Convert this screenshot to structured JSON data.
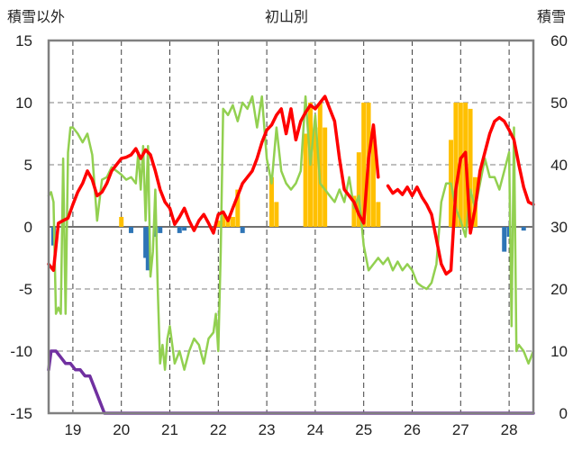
{
  "chart_data": {
    "type": "line",
    "title": "初山別",
    "left_axis_label": "積雪以外",
    "right_axis_label": "積雪",
    "left_ylim": [
      -15,
      15
    ],
    "left_ticks": [
      -15,
      -10,
      -5,
      0,
      5,
      10,
      15
    ],
    "right_ylim": [
      0,
      60
    ],
    "right_ticks": [
      0,
      10,
      20,
      30,
      40,
      50,
      60
    ],
    "xlim": [
      18.5,
      28.5
    ],
    "x_ticks": [
      19,
      20,
      21,
      22,
      23,
      24,
      25,
      26,
      27,
      28
    ],
    "grid": true,
    "legend": "none",
    "colors": {
      "temperature": "#ff0000",
      "temp_diff": "#92d050",
      "snow_depth": "#7030a0",
      "precip_positive": "#ffc000",
      "precip_negative": "#2e75b6"
    },
    "series": [
      {
        "key": "temperature",
        "axis": "left",
        "x": [
          18.5,
          18.6,
          18.7,
          18.8,
          18.9,
          19.0,
          19.1,
          19.2,
          19.3,
          19.4,
          19.5,
          19.6,
          19.7,
          19.8,
          19.9,
          20.0,
          20.1,
          20.2,
          20.3,
          20.4,
          20.5,
          20.6,
          20.7,
          20.8,
          20.9,
          21.0,
          21.1,
          21.2,
          21.3,
          21.4,
          21.5,
          21.6,
          21.7,
          21.8,
          21.9,
          22.0,
          22.1,
          22.2,
          22.3,
          22.4,
          22.5,
          22.6,
          22.7,
          22.8,
          22.9,
          23.0,
          23.1,
          23.2,
          23.3,
          23.4,
          23.5,
          23.6,
          23.7,
          23.8,
          23.9,
          24.0,
          24.1,
          24.2,
          24.3,
          24.4,
          24.5,
          24.6,
          24.7,
          24.8,
          24.9,
          25.0,
          25.1,
          25.2,
          25.3
        ],
        "y": [
          -3.0,
          -3.5,
          0.3,
          0.5,
          0.7,
          1.8,
          2.8,
          3.5,
          4.5,
          3.8,
          2.5,
          2.8,
          3.5,
          4.5,
          5.0,
          5.5,
          5.6,
          5.8,
          6.3,
          5.5,
          6.2,
          5.8,
          4.5,
          3.0,
          2.0,
          1.5,
          0.2,
          0.8,
          1.5,
          0.5,
          -0.3,
          0.5,
          1.0,
          0.3,
          -0.5,
          1.0,
          1.2,
          0.5,
          1.5,
          2.5,
          3.5,
          4.0,
          4.5,
          5.5,
          6.8,
          7.8,
          8.2,
          9.0,
          9.5,
          7.5,
          9.5,
          7.0,
          8.5,
          9.2,
          9.8,
          9.5,
          10.0,
          10.5,
          9.5,
          8.5,
          5.5,
          3.0,
          2.5,
          2.0,
          1.0,
          0.3,
          5.5,
          8.2,
          4.0
        ]
      },
      {
        "key": "temperature",
        "axis": "left",
        "x": [
          25.5,
          25.6,
          25.7,
          25.8,
          25.9,
          26.0,
          26.1,
          26.2,
          26.3,
          26.4,
          26.5,
          26.6,
          26.7,
          26.8,
          26.9,
          27.0,
          27.1,
          27.2,
          27.3,
          27.4,
          27.5,
          27.6,
          27.7,
          27.8,
          27.9,
          28.0,
          28.1,
          28.2,
          28.3,
          28.4,
          28.5
        ],
        "y": [
          3.3,
          2.7,
          3.0,
          2.6,
          3.2,
          2.5,
          3.2,
          2.4,
          1.8,
          1.0,
          -1.0,
          -3.0,
          -3.8,
          -3.5,
          3.0,
          5.5,
          6.0,
          -0.5,
          1.5,
          4.5,
          6.0,
          7.5,
          8.5,
          8.8,
          8.5,
          7.8,
          7.0,
          5.0,
          3.2,
          2.0,
          1.8
        ]
      },
      {
        "key": "temp_diff",
        "axis": "left",
        "x": [
          18.5,
          18.55,
          18.6,
          18.65,
          18.7,
          18.75,
          18.8,
          18.85,
          18.9,
          18.95,
          19.0,
          19.1,
          19.2,
          19.3,
          19.4,
          19.5,
          19.6,
          19.7,
          19.8,
          19.9,
          20.0,
          20.1,
          20.2,
          20.3,
          20.35,
          20.4,
          20.45,
          20.5,
          20.55,
          20.6,
          20.65,
          20.7,
          20.75,
          20.8,
          20.85,
          20.9,
          20.95,
          21.0,
          21.1,
          21.2,
          21.3,
          21.4,
          21.5,
          21.6,
          21.7,
          21.8,
          21.9,
          21.95,
          22.0,
          22.05,
          22.1,
          22.2,
          22.3,
          22.4,
          22.5,
          22.6,
          22.7,
          22.8,
          22.9,
          23.0,
          23.1,
          23.2,
          23.3,
          23.4,
          23.5,
          23.6,
          23.7,
          23.8,
          23.9,
          24.0,
          24.1,
          24.2,
          24.3,
          24.4,
          24.5,
          24.6,
          24.7,
          24.8,
          24.9,
          25.0,
          25.1,
          25.2,
          25.3,
          25.4,
          25.5,
          25.6,
          25.7,
          25.8,
          25.9,
          26.0,
          26.1,
          26.2,
          26.3,
          26.4,
          26.5,
          26.6,
          26.7,
          26.8,
          26.9,
          27.0,
          27.1,
          27.2,
          27.3,
          27.4,
          27.5,
          27.6,
          27.7,
          27.8,
          27.9,
          28.0,
          28.05,
          28.1,
          28.15,
          28.2,
          28.3,
          28.4,
          28.5
        ],
        "y": [
          2.5,
          2.8,
          2.0,
          -7.0,
          -6.5,
          -7.0,
          5.5,
          -7.0,
          6.0,
          8.0,
          8.0,
          7.5,
          6.8,
          7.5,
          5.8,
          0.5,
          3.8,
          4.0,
          4.8,
          4.5,
          4.2,
          3.8,
          4.0,
          3.5,
          6.0,
          3.0,
          6.5,
          0.5,
          6.5,
          -4.0,
          -2.0,
          3.0,
          -5.0,
          -11.0,
          -9.5,
          -11.5,
          -9.0,
          -8.0,
          -11.0,
          -10.0,
          -11.5,
          -10.0,
          -9.0,
          -9.5,
          -11.0,
          -9.0,
          -8.5,
          -7.0,
          -10.0,
          -2.0,
          9.5,
          9.0,
          9.8,
          8.5,
          10.0,
          9.5,
          10.5,
          8.0,
          10.5,
          5.5,
          3.5,
          8.0,
          4.5,
          3.5,
          3.0,
          3.5,
          4.5,
          10.5,
          5.0,
          9.0,
          3.5,
          3.0,
          2.5,
          2.0,
          3.0,
          2.0,
          4.0,
          1.5,
          2.5,
          -1.5,
          -3.5,
          -3.0,
          -2.5,
          -3.0,
          -2.5,
          -3.5,
          -2.8,
          -3.5,
          -3.0,
          -3.5,
          -4.5,
          -4.8,
          -5.0,
          -4.5,
          -3.0,
          2.0,
          3.5,
          3.5,
          1.5,
          0.5,
          -0.8,
          3.0,
          1.5,
          3.5,
          5.5,
          4.0,
          4.0,
          3.0,
          4.5,
          6.0,
          -8.0,
          8.0,
          -10.0,
          -9.5,
          -10.0,
          -11.0,
          -10.0
        ]
      },
      {
        "key": "snow_depth",
        "axis": "right",
        "x": [
          18.5,
          18.55,
          18.65,
          18.75,
          18.85,
          18.95,
          19.05,
          19.15,
          19.25,
          19.35,
          19.45,
          19.55,
          19.65,
          19.75,
          20.0,
          21.0,
          22.0,
          23.0,
          24.0,
          25.0,
          26.0,
          27.0,
          28.0,
          28.5
        ],
        "y": [
          7,
          10,
          10,
          9,
          8,
          8,
          7,
          7,
          6,
          6,
          4,
          2,
          0,
          0,
          0,
          0,
          0,
          0,
          0,
          0,
          0,
          0,
          0,
          0
        ]
      }
    ],
    "bars_positive": [
      {
        "x": 20.0,
        "value": 0.8
      },
      {
        "x": 22.0,
        "value": 0.5
      },
      {
        "x": 22.1,
        "value": 1.0
      },
      {
        "x": 22.2,
        "value": 0.8
      },
      {
        "x": 22.3,
        "value": 0.8
      },
      {
        "x": 22.4,
        "value": 3.0
      },
      {
        "x": 23.1,
        "value": 4.0
      },
      {
        "x": 23.2,
        "value": 2.0
      },
      {
        "x": 23.8,
        "value": 7.5
      },
      {
        "x": 23.9,
        "value": 10.0
      },
      {
        "x": 24.0,
        "value": 8.0
      },
      {
        "x": 24.1,
        "value": 10.0
      },
      {
        "x": 24.2,
        "value": 8.0
      },
      {
        "x": 24.8,
        "value": 2.5
      },
      {
        "x": 24.9,
        "value": 6.0
      },
      {
        "x": 25.0,
        "value": 10.0
      },
      {
        "x": 25.1,
        "value": 10.0
      },
      {
        "x": 25.2,
        "value": 7.0
      },
      {
        "x": 25.3,
        "value": 2.0
      },
      {
        "x": 26.8,
        "value": 7.0
      },
      {
        "x": 26.9,
        "value": 10.0
      },
      {
        "x": 27.0,
        "value": 10.0
      },
      {
        "x": 27.1,
        "value": 10.0
      },
      {
        "x": 27.2,
        "value": 9.5
      },
      {
        "x": 27.3,
        "value": 4.0
      }
    ],
    "bars_negative": [
      {
        "x": 18.6,
        "value": -1.5
      },
      {
        "x": 20.2,
        "value": -0.5
      },
      {
        "x": 20.5,
        "value": -2.5
      },
      {
        "x": 20.55,
        "value": -3.5
      },
      {
        "x": 20.7,
        "value": -0.8
      },
      {
        "x": 20.8,
        "value": -0.5
      },
      {
        "x": 21.2,
        "value": -0.5
      },
      {
        "x": 21.3,
        "value": -0.3
      },
      {
        "x": 22.5,
        "value": -0.5
      },
      {
        "x": 27.9,
        "value": -2.0
      },
      {
        "x": 28.0,
        "value": -0.8
      },
      {
        "x": 28.3,
        "value": -0.3
      }
    ]
  }
}
